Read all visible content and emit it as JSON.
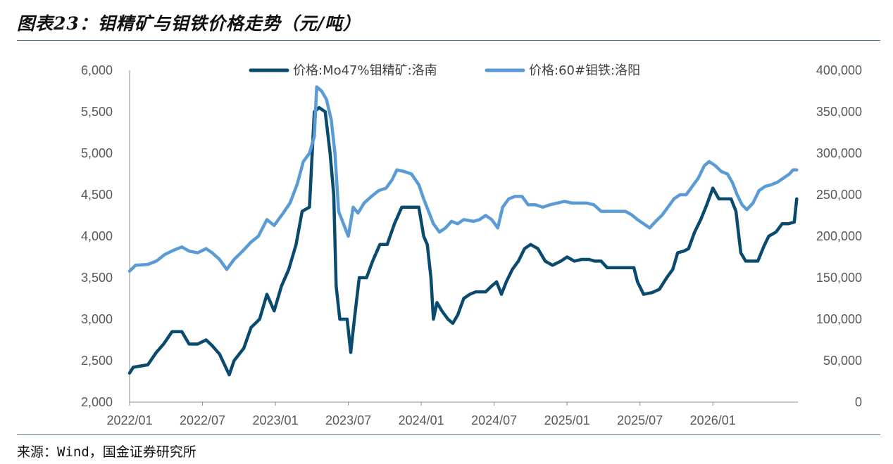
{
  "title": "图表23：钼精矿与钼铁价格走势（元/吨）",
  "source": "来源：Wind，国金证券研究所",
  "colors": {
    "series1": "#0b4a6f",
    "series2": "#5b9bd5",
    "rule": "#4a6f95"
  },
  "chart_data": {
    "type": "line",
    "title": "图表23：钼精矿与钼铁价格走势（元/吨）",
    "x_ticks": [
      "2022/01",
      "2022/07",
      "2023/01",
      "2023/07",
      "2024/01",
      "2024/07",
      "2025/01",
      "2025/07",
      "2026/01"
    ],
    "y_left": {
      "ticks": [
        "6,000",
        "5,500",
        "5,000",
        "4,500",
        "4,000",
        "3,500",
        "3,000",
        "2,500",
        "2,000"
      ],
      "lim": [
        2000,
        6000
      ]
    },
    "y_right": {
      "ticks": [
        "400,000",
        "350,000",
        "300,000",
        "250,000",
        "200,000",
        "150,000",
        "100,000",
        "50,000",
        "0"
      ],
      "lim": [
        0,
        400000
      ]
    },
    "legend_position": "top",
    "grid": false,
    "x_unit": "months since 2022/01",
    "series": [
      {
        "name": "价格:Mo47%钼精矿:洛南",
        "axis": "left",
        "color": "#0b4a6f",
        "points": [
          [
            0,
            2350
          ],
          [
            0.3,
            2420
          ],
          [
            1.5,
            2450
          ],
          [
            2.2,
            2600
          ],
          [
            2.8,
            2700
          ],
          [
            3.5,
            2850
          ],
          [
            4.3,
            2850
          ],
          [
            4.9,
            2700
          ],
          [
            5.6,
            2700
          ],
          [
            6.3,
            2750
          ],
          [
            6.8,
            2680
          ],
          [
            7.4,
            2580
          ],
          [
            8.2,
            2330
          ],
          [
            8.6,
            2500
          ],
          [
            9.4,
            2650
          ],
          [
            10.0,
            2900
          ],
          [
            10.7,
            3000
          ],
          [
            11.3,
            3300
          ],
          [
            11.9,
            3100
          ],
          [
            12.5,
            3400
          ],
          [
            13.1,
            3600
          ],
          [
            13.7,
            3900
          ],
          [
            14.2,
            4300
          ],
          [
            14.8,
            4350
          ],
          [
            15.2,
            5500
          ],
          [
            15.6,
            5550
          ],
          [
            16.1,
            5500
          ],
          [
            16.5,
            5000
          ],
          [
            16.8,
            4500
          ],
          [
            17.0,
            3400
          ],
          [
            17.3,
            3000
          ],
          [
            17.9,
            3000
          ],
          [
            18.2,
            2600
          ],
          [
            18.5,
            3000
          ],
          [
            18.9,
            3500
          ],
          [
            19.5,
            3500
          ],
          [
            20.0,
            3700
          ],
          [
            20.6,
            3900
          ],
          [
            21.2,
            3900
          ],
          [
            21.8,
            4150
          ],
          [
            22.4,
            4350
          ],
          [
            23.0,
            4350
          ],
          [
            23.8,
            4350
          ],
          [
            24.2,
            4000
          ],
          [
            24.5,
            3900
          ],
          [
            24.8,
            3500
          ],
          [
            25.0,
            3000
          ],
          [
            25.3,
            3200
          ],
          [
            25.7,
            3100
          ],
          [
            26.2,
            3000
          ],
          [
            26.6,
            2950
          ],
          [
            27.0,
            3050
          ],
          [
            27.5,
            3250
          ],
          [
            28.0,
            3300
          ],
          [
            28.5,
            3330
          ],
          [
            29.3,
            3330
          ],
          [
            29.8,
            3400
          ],
          [
            30.2,
            3450
          ],
          [
            30.6,
            3300
          ],
          [
            31.0,
            3450
          ],
          [
            31.5,
            3600
          ],
          [
            32.0,
            3700
          ],
          [
            32.5,
            3850
          ],
          [
            33.0,
            3900
          ],
          [
            33.6,
            3850
          ],
          [
            34.2,
            3700
          ],
          [
            34.8,
            3650
          ],
          [
            35.5,
            3700
          ],
          [
            36.0,
            3750
          ],
          [
            36.6,
            3700
          ],
          [
            37.2,
            3720
          ],
          [
            37.8,
            3720
          ],
          [
            38.3,
            3700
          ],
          [
            38.8,
            3700
          ],
          [
            39.3,
            3620
          ],
          [
            40.0,
            3620
          ],
          [
            40.8,
            3620
          ],
          [
            41.5,
            3620
          ],
          [
            41.8,
            3450
          ],
          [
            42.3,
            3300
          ],
          [
            43.0,
            3320
          ],
          [
            43.6,
            3360
          ],
          [
            44.2,
            3500
          ],
          [
            44.7,
            3600
          ],
          [
            45.1,
            3800
          ],
          [
            45.6,
            3820
          ],
          [
            46.0,
            3850
          ],
          [
            46.5,
            4050
          ],
          [
            47.0,
            4200
          ],
          [
            47.5,
            4380
          ],
          [
            48.0,
            4580
          ],
          [
            48.5,
            4450
          ],
          [
            49.0,
            4450
          ],
          [
            49.5,
            4450
          ],
          [
            49.9,
            4300
          ],
          [
            50.3,
            3800
          ],
          [
            50.7,
            3700
          ],
          [
            51.2,
            3700
          ],
          [
            51.7,
            3700
          ],
          [
            52.2,
            3880
          ],
          [
            52.6,
            4000
          ],
          [
            53.2,
            4050
          ],
          [
            53.7,
            4150
          ],
          [
            54.2,
            4150
          ],
          [
            54.7,
            4170
          ],
          [
            54.9,
            4450
          ]
        ]
      },
      {
        "name": "价格:60#钼铁:洛阳",
        "axis": "right",
        "color": "#5b9bd5",
        "points": [
          [
            0,
            158000
          ],
          [
            0.5,
            165000
          ],
          [
            1.5,
            166000
          ],
          [
            2.2,
            170000
          ],
          [
            2.9,
            178000
          ],
          [
            3.6,
            183000
          ],
          [
            4.3,
            187000
          ],
          [
            4.9,
            182000
          ],
          [
            5.6,
            180000
          ],
          [
            6.3,
            185000
          ],
          [
            6.8,
            180000
          ],
          [
            7.4,
            172000
          ],
          [
            8.0,
            160000
          ],
          [
            8.6,
            172000
          ],
          [
            9.3,
            182000
          ],
          [
            10.0,
            193000
          ],
          [
            10.6,
            200000
          ],
          [
            11.3,
            220000
          ],
          [
            11.9,
            213000
          ],
          [
            12.6,
            227000
          ],
          [
            13.2,
            240000
          ],
          [
            13.8,
            263000
          ],
          [
            14.3,
            290000
          ],
          [
            14.8,
            300000
          ],
          [
            15.2,
            320000
          ],
          [
            15.4,
            380000
          ],
          [
            15.8,
            375000
          ],
          [
            16.2,
            365000
          ],
          [
            16.6,
            340000
          ],
          [
            16.9,
            300000
          ],
          [
            17.2,
            230000
          ],
          [
            17.6,
            215000
          ],
          [
            18.0,
            200000
          ],
          [
            18.4,
            235000
          ],
          [
            18.8,
            228000
          ],
          [
            19.3,
            240000
          ],
          [
            19.9,
            248000
          ],
          [
            20.5,
            255000
          ],
          [
            21.1,
            258000
          ],
          [
            21.6,
            268000
          ],
          [
            22.0,
            280000
          ],
          [
            22.6,
            278000
          ],
          [
            23.2,
            275000
          ],
          [
            23.8,
            262000
          ],
          [
            24.2,
            245000
          ],
          [
            24.6,
            230000
          ],
          [
            25.0,
            215000
          ],
          [
            25.5,
            205000
          ],
          [
            26.0,
            210000
          ],
          [
            26.5,
            218000
          ],
          [
            27.0,
            215000
          ],
          [
            27.5,
            220000
          ],
          [
            28.3,
            218000
          ],
          [
            28.8,
            220000
          ],
          [
            29.3,
            225000
          ],
          [
            29.8,
            220000
          ],
          [
            30.3,
            210000
          ],
          [
            30.7,
            235000
          ],
          [
            31.2,
            245000
          ],
          [
            31.7,
            248000
          ],
          [
            32.3,
            248000
          ],
          [
            32.8,
            238000
          ],
          [
            33.4,
            238000
          ],
          [
            34.0,
            235000
          ],
          [
            34.6,
            238000
          ],
          [
            35.2,
            240000
          ],
          [
            35.8,
            242000
          ],
          [
            36.4,
            240000
          ],
          [
            37.0,
            240000
          ],
          [
            37.6,
            240000
          ],
          [
            38.2,
            238000
          ],
          [
            38.8,
            230000
          ],
          [
            39.5,
            230000
          ],
          [
            40.2,
            230000
          ],
          [
            40.8,
            230000
          ],
          [
            41.3,
            226000
          ],
          [
            41.8,
            220000
          ],
          [
            42.3,
            215000
          ],
          [
            42.8,
            210000
          ],
          [
            43.3,
            218000
          ],
          [
            43.8,
            225000
          ],
          [
            44.3,
            235000
          ],
          [
            44.8,
            245000
          ],
          [
            45.3,
            250000
          ],
          [
            45.8,
            250000
          ],
          [
            46.3,
            260000
          ],
          [
            46.8,
            270000
          ],
          [
            47.3,
            285000
          ],
          [
            47.7,
            290000
          ],
          [
            48.2,
            285000
          ],
          [
            48.7,
            278000
          ],
          [
            49.2,
            275000
          ],
          [
            49.6,
            265000
          ],
          [
            50.0,
            250000
          ],
          [
            50.4,
            238000
          ],
          [
            50.8,
            232000
          ],
          [
            51.3,
            240000
          ],
          [
            51.8,
            255000
          ],
          [
            52.3,
            260000
          ],
          [
            52.8,
            262000
          ],
          [
            53.3,
            265000
          ],
          [
            53.8,
            270000
          ],
          [
            54.3,
            275000
          ],
          [
            54.6,
            280000
          ],
          [
            54.9,
            280000
          ]
        ]
      }
    ]
  }
}
